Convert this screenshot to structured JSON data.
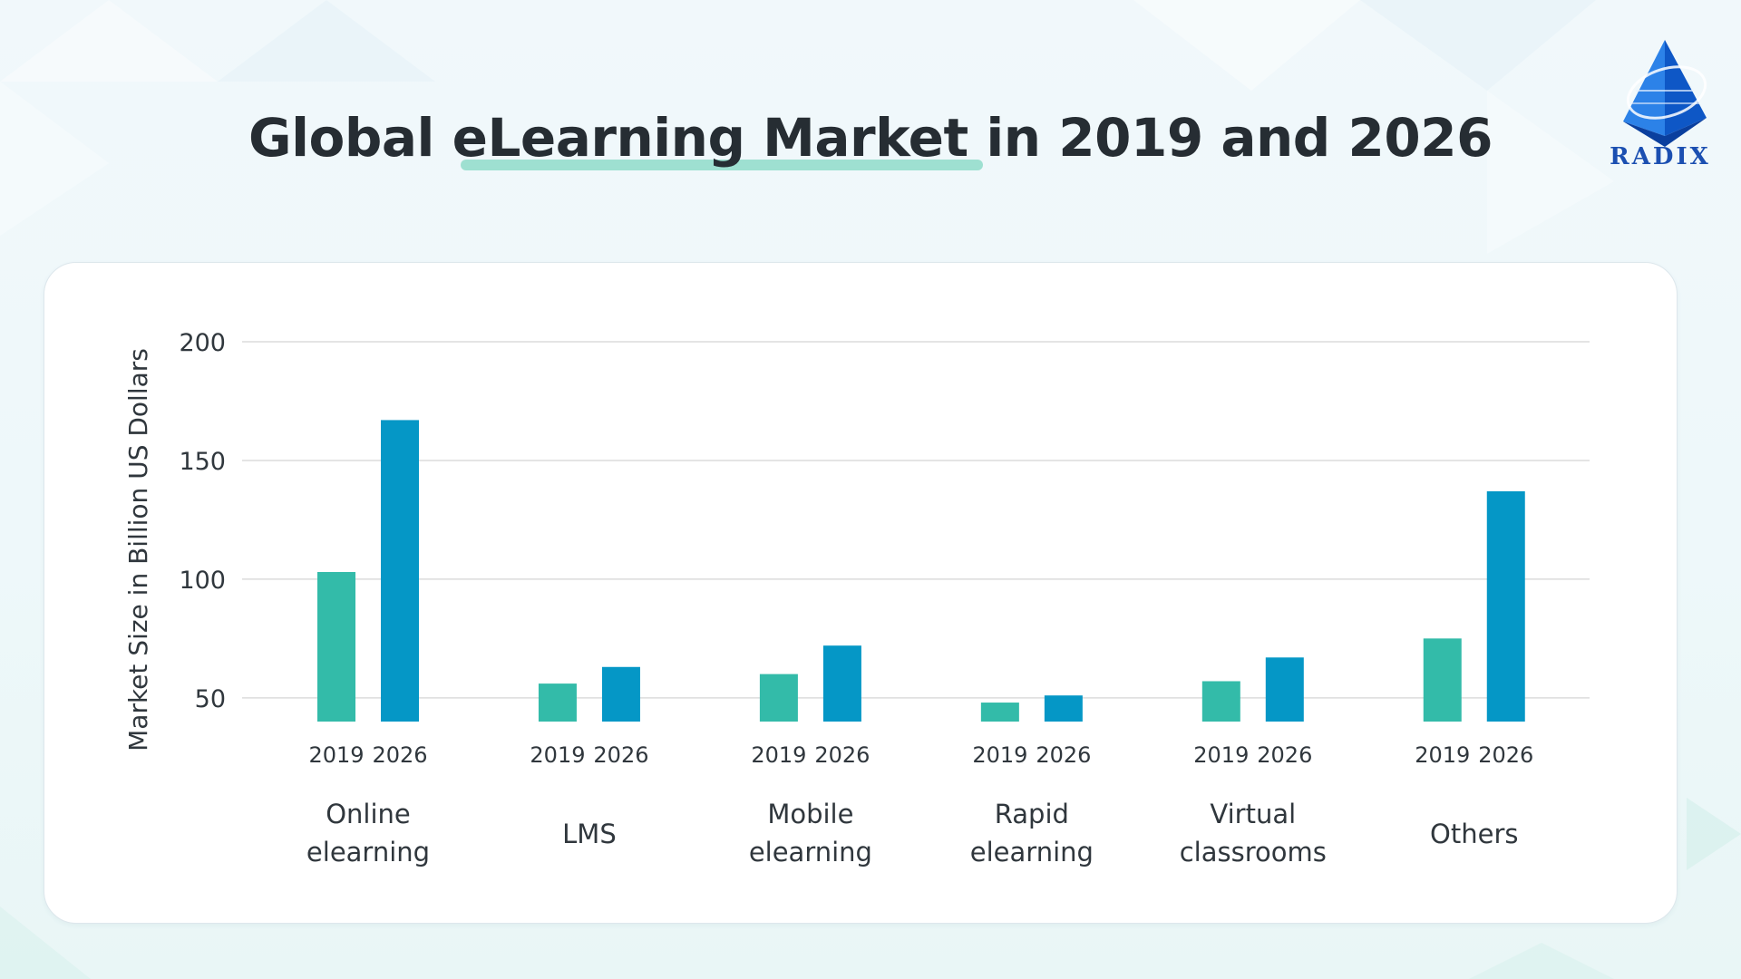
{
  "title": "Global eLearning Market in 2019 and 2026",
  "logo": {
    "text": "RADIX"
  },
  "colors": {
    "series_2019": "#33bba9",
    "series_2026": "#0597c6",
    "title": "#262d33",
    "underline": "#8fdcc9",
    "logo_blue": "#1b4fb1"
  },
  "chart_data": {
    "type": "bar",
    "title": "Global eLearning Market in 2019 and 2026",
    "ylabel": "Market Size in Billion US Dollars",
    "xlabel": "",
    "ylim": [
      40,
      200
    ],
    "yticks": [
      "50",
      "100",
      "150",
      "200"
    ],
    "grid": true,
    "categories": [
      [
        "Online",
        "elearning"
      ],
      [
        "LMS"
      ],
      [
        "Mobile",
        "elearning"
      ],
      [
        "Rapid",
        "elearning"
      ],
      [
        "Virtual",
        "classrooms"
      ],
      [
        "Others"
      ]
    ],
    "series": [
      {
        "name": "2019",
        "values": [
          103,
          56,
          60,
          48,
          57,
          75
        ]
      },
      {
        "name": "2026",
        "values": [
          167,
          63,
          72,
          51,
          67,
          137
        ]
      }
    ]
  }
}
